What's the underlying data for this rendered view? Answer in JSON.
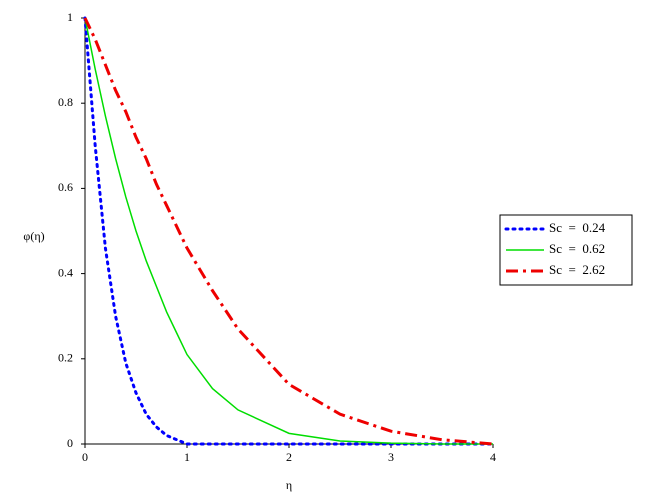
{
  "chart_data": {
    "type": "line",
    "xlabel": "η",
    "ylabel": "φ(η)",
    "x": [
      0,
      0.1,
      0.2,
      0.3,
      0.4,
      0.5,
      0.6,
      0.7,
      0.8,
      0.9,
      1,
      1.25,
      1.5,
      2,
      2.5,
      3,
      3.5,
      4
    ],
    "series": [
      {
        "name": "Sc  =  0.24",
        "color": "#0000ff",
        "dash": "dot",
        "values": [
          1,
          0.7,
          0.46,
          0.3,
          0.19,
          0.12,
          0.07,
          0.04,
          0.02,
          0.01,
          0,
          0,
          0,
          0,
          0,
          0,
          0,
          0
        ]
      },
      {
        "name": "Sc  =  0.62",
        "color": "#00dd00",
        "dash": "solid",
        "values": [
          1,
          0.88,
          0.77,
          0.67,
          0.58,
          0.5,
          0.43,
          0.37,
          0.31,
          0.26,
          0.21,
          0.13,
          0.08,
          0.025,
          0.007,
          0.002,
          0,
          0
        ]
      },
      {
        "name": "Sc  =  2.62",
        "color": "#ee0000",
        "dash": "dashdot",
        "values": [
          1,
          0.95,
          0.89,
          0.83,
          0.78,
          0.72,
          0.67,
          0.61,
          0.56,
          0.51,
          0.46,
          0.36,
          0.27,
          0.14,
          0.07,
          0.03,
          0.01,
          0
        ]
      }
    ],
    "xlim": [
      0,
      4
    ],
    "xticks": [
      0,
      1,
      2,
      3,
      4
    ],
    "ylim": [
      0,
      1
    ],
    "yticks": [
      0,
      0.2,
      0.4,
      0.6,
      0.8,
      1
    ],
    "grid": false,
    "legend": "right"
  }
}
